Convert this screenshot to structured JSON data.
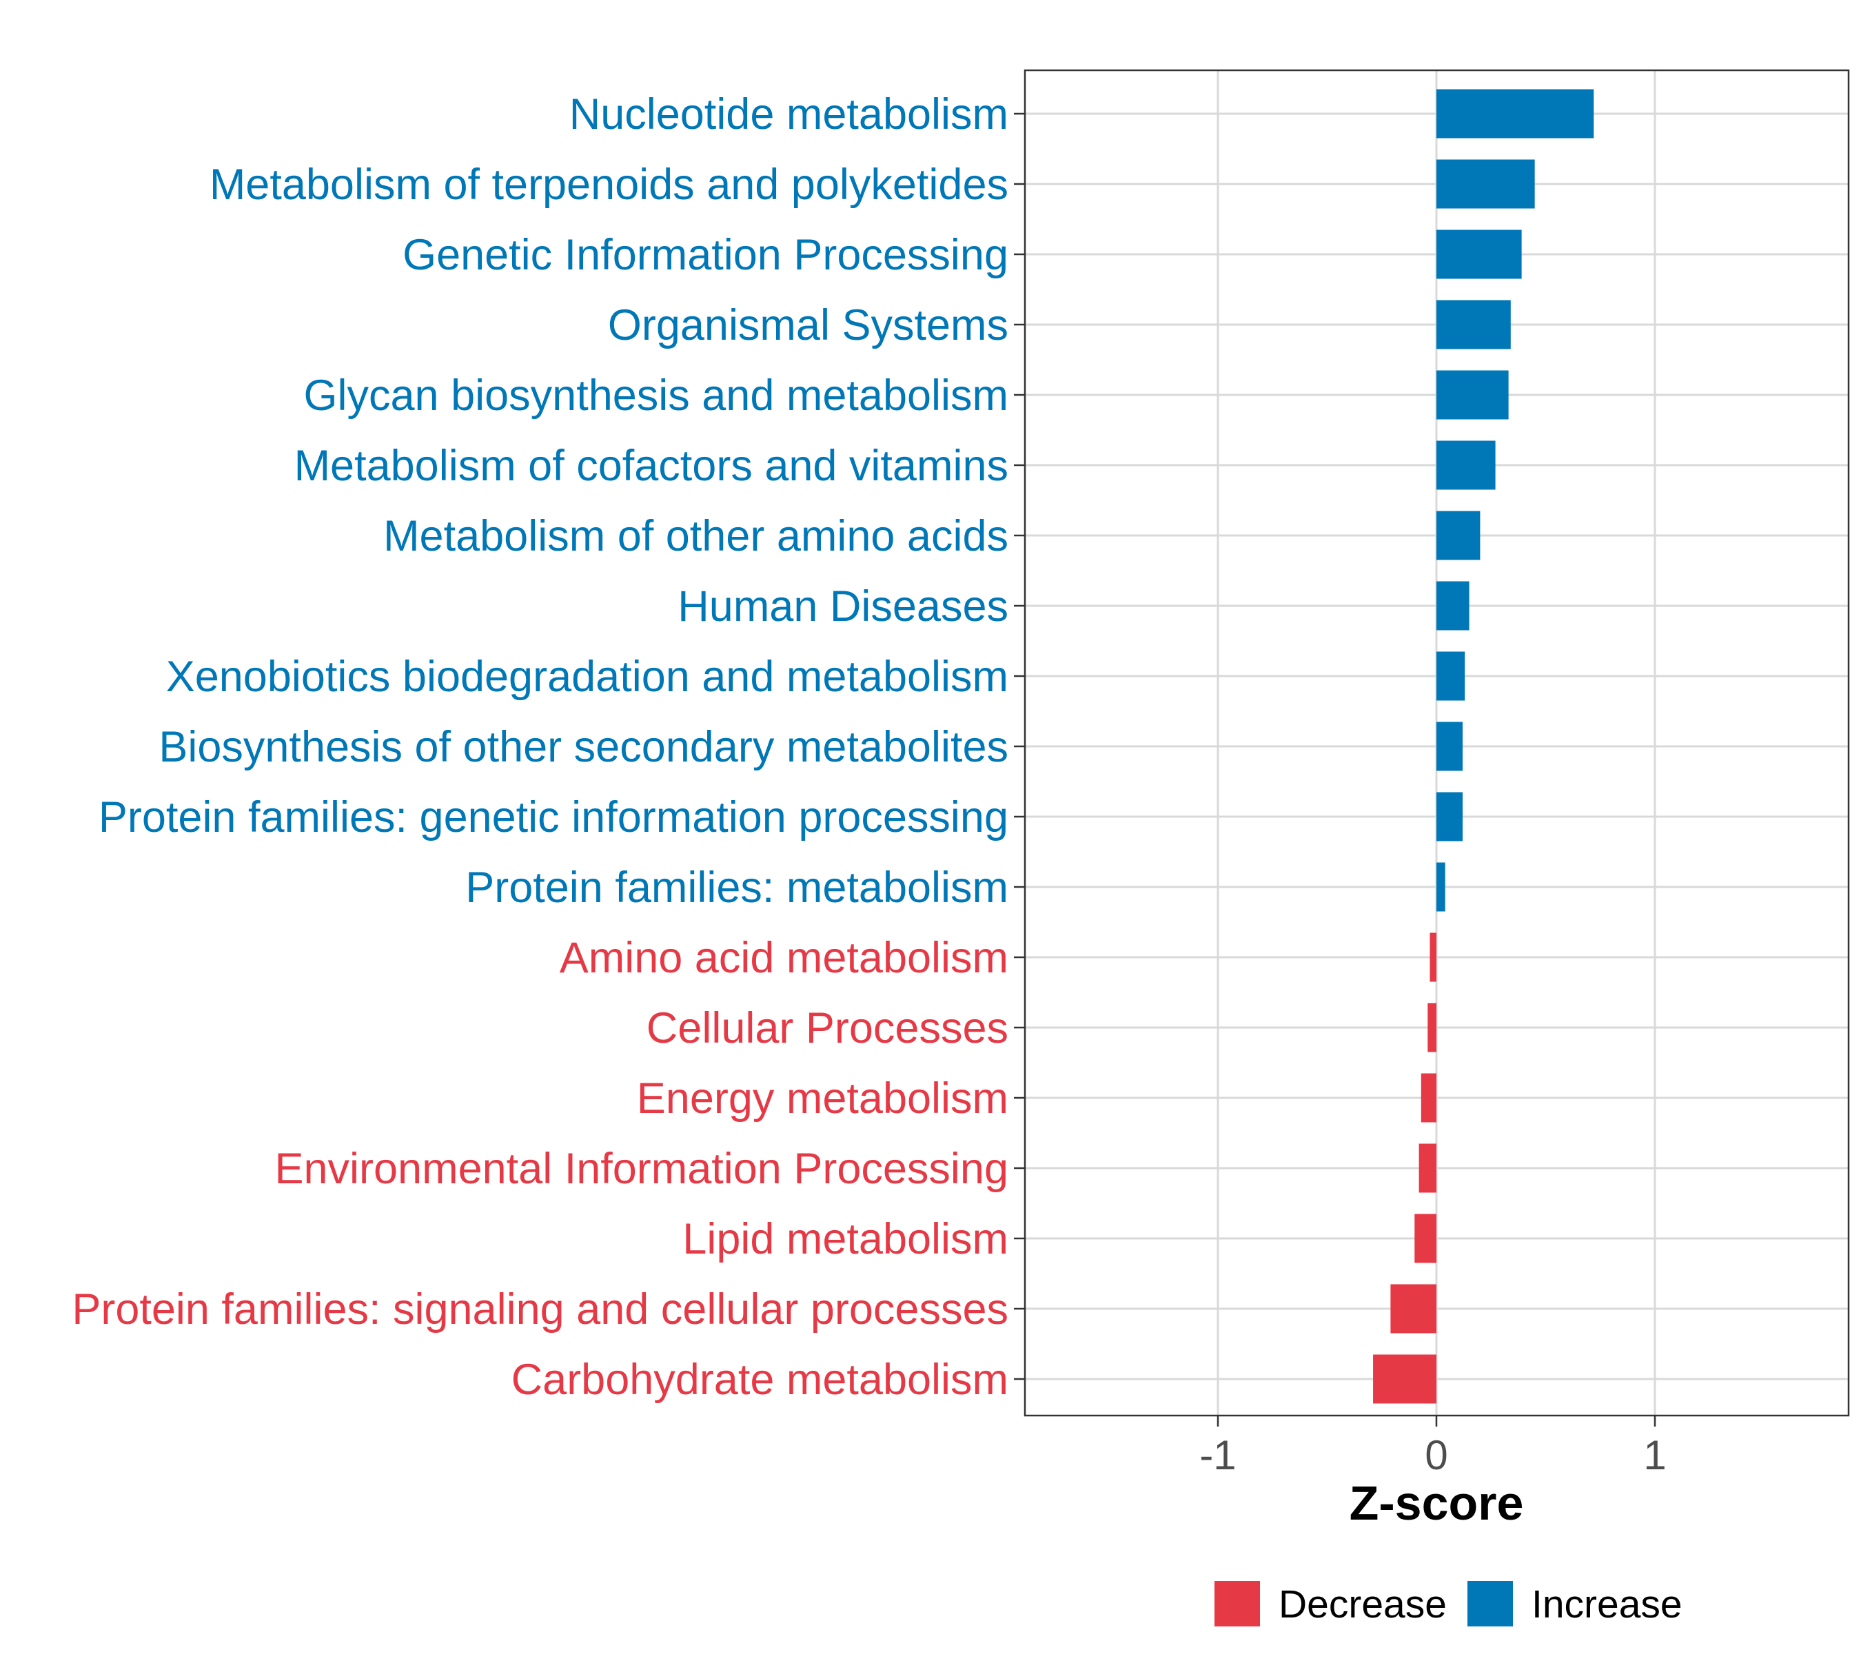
{
  "chart_data": {
    "type": "bar",
    "orientation": "horizontal",
    "title": "",
    "xlabel": "Z-score",
    "ylabel": "",
    "xlim": [
      -1.8,
      1.8
    ],
    "xticks": [
      {
        "value": -1,
        "label": "-1"
      },
      {
        "value": 0,
        "label": "0"
      },
      {
        "value": 1,
        "label": "1"
      }
    ],
    "grid": true,
    "legend_position": "bottom",
    "colors": {
      "Decrease": "#e63946",
      "Increase": "#0077b6"
    },
    "legend": [
      {
        "key": "Decrease",
        "label": "Decrease"
      },
      {
        "key": "Increase",
        "label": "Increase"
      }
    ],
    "bars": [
      {
        "category": "Nucleotide metabolism",
        "value": 0.72,
        "group": "Increase"
      },
      {
        "category": "Metabolism of terpenoids and polyketides",
        "value": 0.45,
        "group": "Increase"
      },
      {
        "category": "Genetic Information Processing",
        "value": 0.39,
        "group": "Increase"
      },
      {
        "category": "Organismal Systems",
        "value": 0.34,
        "group": "Increase"
      },
      {
        "category": "Glycan biosynthesis and metabolism",
        "value": 0.33,
        "group": "Increase"
      },
      {
        "category": "Metabolism of cofactors and vitamins",
        "value": 0.27,
        "group": "Increase"
      },
      {
        "category": "Metabolism of other amino acids",
        "value": 0.2,
        "group": "Increase"
      },
      {
        "category": "Human Diseases",
        "value": 0.15,
        "group": "Increase"
      },
      {
        "category": "Xenobiotics biodegradation and metabolism",
        "value": 0.13,
        "group": "Increase"
      },
      {
        "category": "Biosynthesis of other secondary metabolites",
        "value": 0.12,
        "group": "Increase"
      },
      {
        "category": "Protein families: genetic information processing",
        "value": 0.12,
        "group": "Increase"
      },
      {
        "category": "Protein families: metabolism",
        "value": 0.04,
        "group": "Increase"
      },
      {
        "category": "Amino acid metabolism",
        "value": -0.03,
        "group": "Decrease"
      },
      {
        "category": "Cellular Processes",
        "value": -0.04,
        "group": "Decrease"
      },
      {
        "category": "Energy metabolism",
        "value": -0.07,
        "group": "Decrease"
      },
      {
        "category": "Environmental Information Processing",
        "value": -0.08,
        "group": "Decrease"
      },
      {
        "category": "Lipid metabolism",
        "value": -0.1,
        "group": "Decrease"
      },
      {
        "category": "Protein families: signaling and cellular processes",
        "value": -0.21,
        "group": "Decrease"
      },
      {
        "category": "Carbohydrate metabolism",
        "value": -0.29,
        "group": "Decrease"
      }
    ]
  }
}
